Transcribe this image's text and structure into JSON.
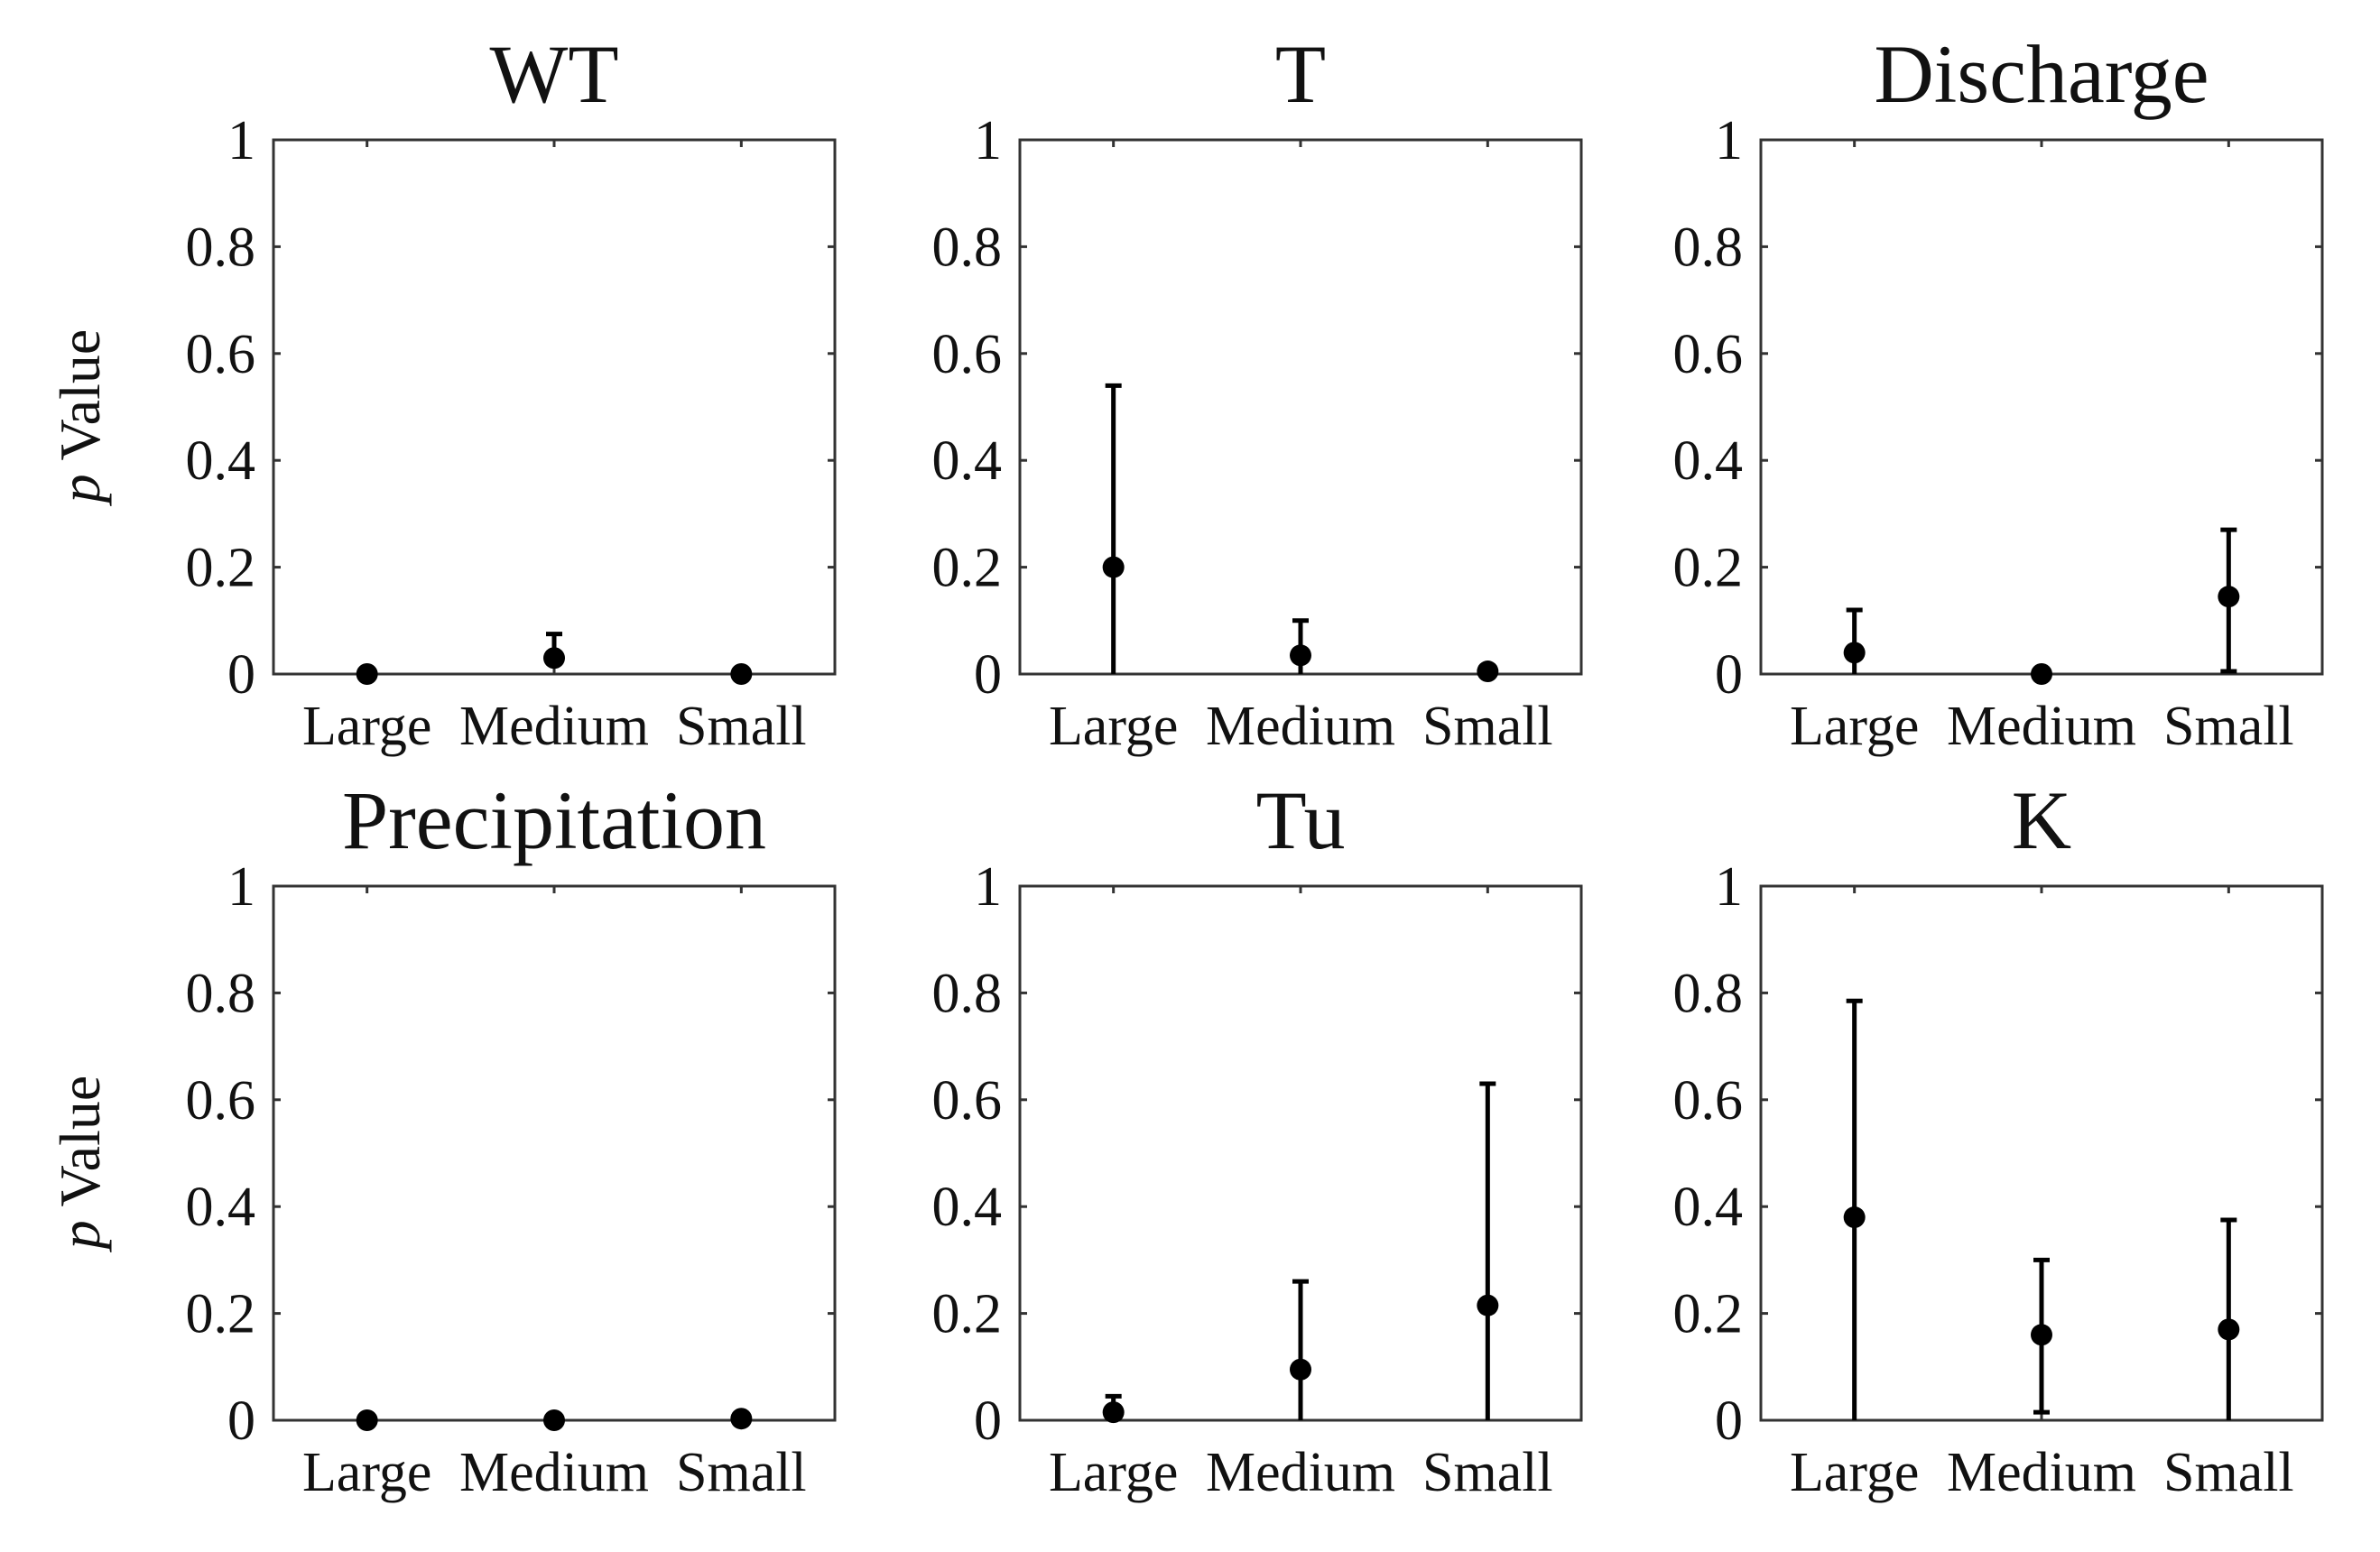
{
  "figure": {
    "ylabel_italic": "p",
    "ylabel_rest": " Value"
  },
  "chart_data": [
    {
      "type": "scatter",
      "title": "WT",
      "categories": [
        "Large",
        "Medium",
        "Small"
      ],
      "values": [
        0.0,
        0.03,
        0.0
      ],
      "err_low": [
        0.0,
        0.03,
        0.0
      ],
      "err_high": [
        0.0,
        0.075,
        0.0
      ],
      "ylim": [
        0,
        1
      ],
      "yticks": [
        0,
        0.2,
        0.4,
        0.6,
        0.8,
        1
      ],
      "ytick_labels": [
        "0",
        "0.2",
        "0.4",
        "0.6",
        "0.8",
        "1"
      ],
      "ylabel": "p Value",
      "grid": false
    },
    {
      "type": "scatter",
      "title": "T",
      "categories": [
        "Large",
        "Medium",
        "Small"
      ],
      "values": [
        0.2,
        0.035,
        0.005
      ],
      "err_low": [
        0.0,
        0.0,
        0.005
      ],
      "err_high": [
        0.54,
        0.1,
        0.005
      ],
      "ylim": [
        0,
        1
      ],
      "yticks": [
        0,
        0.2,
        0.4,
        0.6,
        0.8,
        1
      ],
      "ytick_labels": [
        "0",
        "0.2",
        "0.4",
        "0.6",
        "0.8",
        "1"
      ],
      "ylabel": "",
      "grid": false
    },
    {
      "type": "scatter",
      "title": "Discharge",
      "categories": [
        "Large",
        "Medium",
        "Small"
      ],
      "values": [
        0.04,
        0.0,
        0.145
      ],
      "err_low": [
        0.0,
        0.0,
        0.005
      ],
      "err_high": [
        0.12,
        0.0,
        0.27
      ],
      "ylim": [
        0,
        1
      ],
      "yticks": [
        0,
        0.2,
        0.4,
        0.6,
        0.8,
        1
      ],
      "ytick_labels": [
        "0",
        "0.2",
        "0.4",
        "0.6",
        "0.8",
        "1"
      ],
      "ylabel": "",
      "grid": false
    },
    {
      "type": "scatter",
      "title": "Precipitation",
      "categories": [
        "Large",
        "Medium",
        "Small"
      ],
      "values": [
        0.0,
        0.0,
        0.003
      ],
      "err_low": [
        0.0,
        0.0,
        0.003
      ],
      "err_high": [
        0.0,
        0.0,
        0.003
      ],
      "ylim": [
        0,
        1
      ],
      "yticks": [
        0,
        0.2,
        0.4,
        0.6,
        0.8,
        1
      ],
      "ytick_labels": [
        "0",
        "0.2",
        "0.4",
        "0.6",
        "0.8",
        "1"
      ],
      "ylabel": "p Value",
      "grid": false
    },
    {
      "type": "scatter",
      "title": "Tu",
      "categories": [
        "Large",
        "Medium",
        "Small"
      ],
      "values": [
        0.015,
        0.095,
        0.215
      ],
      "err_low": [
        0.005,
        0.0,
        0.0
      ],
      "err_high": [
        0.045,
        0.26,
        0.63
      ],
      "ylim": [
        0,
        1
      ],
      "yticks": [
        0,
        0.2,
        0.4,
        0.6,
        0.8,
        1
      ],
      "ytick_labels": [
        "0",
        "0.2",
        "0.4",
        "0.6",
        "0.8",
        "1"
      ],
      "ylabel": "",
      "grid": false
    },
    {
      "type": "scatter",
      "title": "K",
      "categories": [
        "Large",
        "Medium",
        "Small"
      ],
      "values": [
        0.38,
        0.16,
        0.17
      ],
      "err_low": [
        0.0,
        0.015,
        0.0
      ],
      "err_high": [
        0.785,
        0.3,
        0.375
      ],
      "ylim": [
        0,
        1
      ],
      "yticks": [
        0,
        0.2,
        0.4,
        0.6,
        0.8,
        1
      ],
      "ytick_labels": [
        "0",
        "0.2",
        "0.4",
        "0.6",
        "0.8",
        "1"
      ],
      "ylabel": "",
      "grid": false
    }
  ]
}
